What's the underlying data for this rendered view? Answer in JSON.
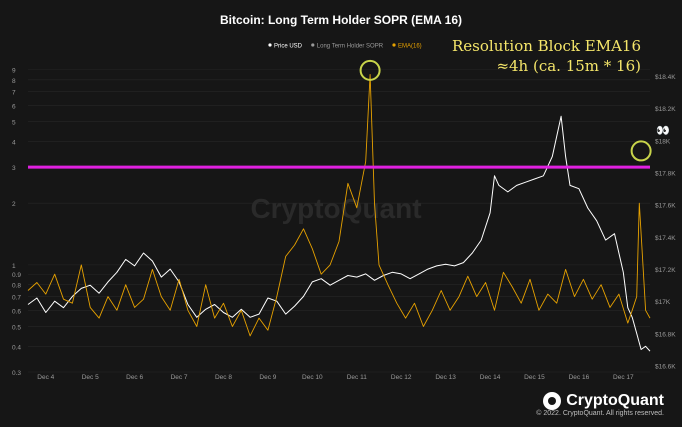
{
  "chart_data": {
    "type": "line",
    "title": "Bitcoin: Long Term Holder SOPR (EMA 16)",
    "annotation": {
      "line1": "Resolution Block EMA16",
      "line2": "≈4h (ca. 15m * 16)",
      "color": "#f5e66a"
    },
    "watermark": "CryptoQuant",
    "x_ticks": [
      "Dec 4",
      "Dec 5",
      "Dec 6",
      "Dec 7",
      "Dec 8",
      "Dec 9",
      "Dec 10",
      "Dec 11",
      "Dec 12",
      "Dec 13",
      "Dec 14",
      "Dec 15",
      "Dec 16",
      "Dec 17"
    ],
    "x_range": [
      3.6,
      17.6
    ],
    "y_left": {
      "scale": "log",
      "ticks": [
        "0.3",
        "0.4",
        "0.5",
        "0.6",
        "0.7",
        "0.8",
        "0.9",
        "1",
        "2",
        "3",
        "4",
        "5",
        "6",
        "7",
        "8",
        "9"
      ],
      "range": [
        0.3,
        10
      ]
    },
    "y_right": {
      "ticks": [
        "$16.6K",
        "$16.8K",
        "$17K",
        "$17.2K",
        "$17.4K",
        "$17.6K",
        "$17.8K",
        "$18K",
        "$18.2K",
        "$18.4K"
      ],
      "range": [
        16.56,
        18.5
      ]
    },
    "threshold": {
      "value": 3,
      "color": "#e020e0"
    },
    "highlight_circles": [
      {
        "x": 11.3,
        "y": 8.9
      },
      {
        "x": 17.4,
        "y": 3.6
      }
    ],
    "series": [
      {
        "name": "Price USD",
        "color": "#ffffff",
        "axis": "right",
        "points": [
          [
            3.6,
            16.98
          ],
          [
            3.8,
            17.02
          ],
          [
            4.0,
            16.93
          ],
          [
            4.2,
            17.0
          ],
          [
            4.4,
            16.96
          ],
          [
            4.6,
            17.03
          ],
          [
            4.8,
            17.08
          ],
          [
            5.0,
            17.1
          ],
          [
            5.2,
            17.05
          ],
          [
            5.4,
            17.12
          ],
          [
            5.6,
            17.18
          ],
          [
            5.8,
            17.26
          ],
          [
            6.0,
            17.22
          ],
          [
            6.2,
            17.3
          ],
          [
            6.4,
            17.25
          ],
          [
            6.6,
            17.15
          ],
          [
            6.8,
            17.2
          ],
          [
            7.0,
            17.12
          ],
          [
            7.2,
            16.98
          ],
          [
            7.4,
            16.9
          ],
          [
            7.6,
            16.95
          ],
          [
            7.8,
            16.98
          ],
          [
            8.0,
            16.93
          ],
          [
            8.2,
            16.9
          ],
          [
            8.4,
            16.95
          ],
          [
            8.6,
            16.9
          ],
          [
            8.8,
            16.92
          ],
          [
            9.0,
            17.02
          ],
          [
            9.2,
            17.0
          ],
          [
            9.4,
            16.92
          ],
          [
            9.6,
            16.97
          ],
          [
            9.8,
            17.03
          ],
          [
            10.0,
            17.12
          ],
          [
            10.2,
            17.14
          ],
          [
            10.4,
            17.1
          ],
          [
            10.6,
            17.13
          ],
          [
            10.8,
            17.16
          ],
          [
            11.0,
            17.15
          ],
          [
            11.2,
            17.17
          ],
          [
            11.4,
            17.13
          ],
          [
            11.6,
            17.16
          ],
          [
            11.8,
            17.18
          ],
          [
            12.0,
            17.17
          ],
          [
            12.2,
            17.14
          ],
          [
            12.4,
            17.17
          ],
          [
            12.6,
            17.2
          ],
          [
            12.8,
            17.22
          ],
          [
            13.0,
            17.23
          ],
          [
            13.2,
            17.22
          ],
          [
            13.4,
            17.24
          ],
          [
            13.6,
            17.3
          ],
          [
            13.8,
            17.38
          ],
          [
            14.0,
            17.55
          ],
          [
            14.1,
            17.78
          ],
          [
            14.2,
            17.72
          ],
          [
            14.4,
            17.68
          ],
          [
            14.6,
            17.72
          ],
          [
            14.8,
            17.74
          ],
          [
            15.0,
            17.76
          ],
          [
            15.2,
            17.78
          ],
          [
            15.4,
            17.9
          ],
          [
            15.6,
            18.15
          ],
          [
            15.7,
            17.9
          ],
          [
            15.8,
            17.72
          ],
          [
            16.0,
            17.7
          ],
          [
            16.2,
            17.58
          ],
          [
            16.4,
            17.5
          ],
          [
            16.6,
            17.38
          ],
          [
            16.8,
            17.42
          ],
          [
            17.0,
            17.18
          ],
          [
            17.1,
            16.96
          ],
          [
            17.2,
            16.9
          ],
          [
            17.3,
            16.8
          ],
          [
            17.4,
            16.7
          ],
          [
            17.5,
            16.72
          ],
          [
            17.6,
            16.69
          ]
        ]
      },
      {
        "name": "Long Term Holder SOPR",
        "color": "#9a9a9a",
        "axis": "left",
        "points": []
      },
      {
        "name": "EMA(16)",
        "color": "#e6a100",
        "axis": "left",
        "points": [
          [
            3.6,
            0.75
          ],
          [
            3.8,
            0.82
          ],
          [
            4.0,
            0.72
          ],
          [
            4.2,
            0.9
          ],
          [
            4.4,
            0.68
          ],
          [
            4.6,
            0.65
          ],
          [
            4.8,
            1.0
          ],
          [
            5.0,
            0.62
          ],
          [
            5.2,
            0.55
          ],
          [
            5.4,
            0.7
          ],
          [
            5.6,
            0.6
          ],
          [
            5.8,
            0.8
          ],
          [
            6.0,
            0.62
          ],
          [
            6.2,
            0.68
          ],
          [
            6.4,
            0.95
          ],
          [
            6.6,
            0.7
          ],
          [
            6.8,
            0.6
          ],
          [
            7.0,
            0.85
          ],
          [
            7.2,
            0.6
          ],
          [
            7.4,
            0.5
          ],
          [
            7.6,
            0.8
          ],
          [
            7.8,
            0.55
          ],
          [
            8.0,
            0.65
          ],
          [
            8.2,
            0.5
          ],
          [
            8.4,
            0.6
          ],
          [
            8.6,
            0.45
          ],
          [
            8.8,
            0.55
          ],
          [
            9.0,
            0.48
          ],
          [
            9.2,
            0.7
          ],
          [
            9.4,
            1.1
          ],
          [
            9.6,
            1.25
          ],
          [
            9.8,
            1.5
          ],
          [
            10.0,
            1.2
          ],
          [
            10.2,
            0.9
          ],
          [
            10.4,
            1.0
          ],
          [
            10.6,
            1.3
          ],
          [
            10.8,
            2.5
          ],
          [
            11.0,
            1.9
          ],
          [
            11.2,
            3.2
          ],
          [
            11.3,
            8.5
          ],
          [
            11.4,
            2.0
          ],
          [
            11.5,
            1.0
          ],
          [
            11.7,
            0.8
          ],
          [
            11.9,
            0.65
          ],
          [
            12.1,
            0.55
          ],
          [
            12.3,
            0.65
          ],
          [
            12.5,
            0.5
          ],
          [
            12.7,
            0.6
          ],
          [
            12.9,
            0.75
          ],
          [
            13.1,
            0.6
          ],
          [
            13.3,
            0.7
          ],
          [
            13.5,
            0.88
          ],
          [
            13.7,
            0.7
          ],
          [
            13.9,
            0.82
          ],
          [
            14.1,
            0.6
          ],
          [
            14.3,
            0.92
          ],
          [
            14.5,
            0.78
          ],
          [
            14.7,
            0.65
          ],
          [
            14.9,
            0.85
          ],
          [
            15.1,
            0.6
          ],
          [
            15.3,
            0.72
          ],
          [
            15.5,
            0.65
          ],
          [
            15.7,
            0.95
          ],
          [
            15.9,
            0.7
          ],
          [
            16.1,
            0.85
          ],
          [
            16.3,
            0.68
          ],
          [
            16.5,
            0.8
          ],
          [
            16.7,
            0.62
          ],
          [
            16.9,
            0.72
          ],
          [
            17.1,
            0.52
          ],
          [
            17.2,
            0.6
          ],
          [
            17.3,
            0.7
          ],
          [
            17.36,
            2.0
          ],
          [
            17.42,
            1.2
          ],
          [
            17.5,
            0.6
          ],
          [
            17.6,
            0.55
          ]
        ]
      }
    ],
    "copyright": "© 2022. CryptoQuant. All rights reserved."
  }
}
